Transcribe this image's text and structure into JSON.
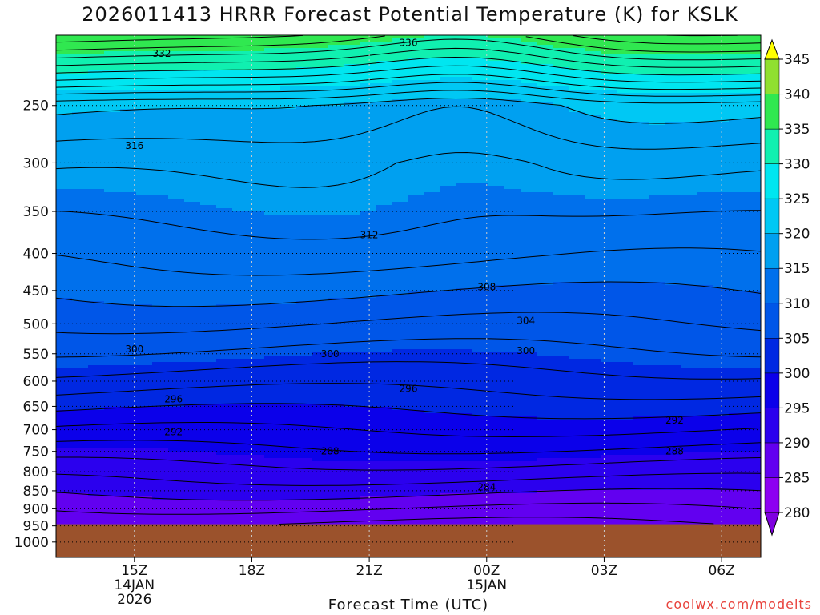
{
  "chart_data": {
    "type": "contour",
    "title": "2026011413 HRRR Forecast Potential Temperature (K) for KSLK",
    "xlabel": "Forecast Time (UTC)",
    "ylabel": "",
    "credit": "coolwx.com/modelts",
    "x_ticks": [
      {
        "hour": 15,
        "label": "15Z",
        "label2": "14JAN",
        "label3": "2026"
      },
      {
        "hour": 18,
        "label": "18Z",
        "label2": "",
        "label3": ""
      },
      {
        "hour": 21,
        "label": "21Z",
        "label2": "",
        "label3": ""
      },
      {
        "hour": 24,
        "label": "00Z",
        "label2": "15JAN",
        "label3": ""
      },
      {
        "hour": 27,
        "label": "03Z",
        "label2": "",
        "label3": ""
      },
      {
        "hour": 30,
        "label": "06Z",
        "label2": "",
        "label3": ""
      }
    ],
    "xlim": [
      13,
      31
    ],
    "y_scale": "log",
    "ylim": [
      1050,
      200
    ],
    "y_ticks": [
      250,
      300,
      350,
      400,
      450,
      500,
      550,
      600,
      650,
      700,
      750,
      800,
      850,
      900,
      950,
      1000
    ],
    "colorbar": {
      "levels": [
        280,
        285,
        290,
        295,
        300,
        305,
        310,
        315,
        320,
        325,
        330,
        335,
        340,
        345
      ],
      "colors": [
        "#7f00e0",
        "#8d00f2",
        "#6200f0",
        "#2b00ee",
        "#0b00ea",
        "#0028e2",
        "#0056e8",
        "#0070ec",
        "#00a0f0",
        "#00c8f4",
        "#00e6f0",
        "#10f0b0",
        "#30e850",
        "#90e030",
        "#ffff00"
      ]
    },
    "ground_color": "#9b522c",
    "ground_top_hPa": 945,
    "isotherm_labels": [
      {
        "value": "332",
        "hour": 15.7,
        "p": 212
      },
      {
        "value": "336",
        "hour": 22.0,
        "p": 205
      },
      {
        "value": "316",
        "hour": 15.0,
        "p": 284
      },
      {
        "value": "312",
        "hour": 21.0,
        "p": 377
      },
      {
        "value": "308",
        "hour": 24.0,
        "p": 445
      },
      {
        "value": "304",
        "hour": 25.0,
        "p": 495
      },
      {
        "value": "300",
        "hour": 15.0,
        "p": 542
      },
      {
        "value": "300",
        "hour": 20.0,
        "p": 550
      },
      {
        "value": "300",
        "hour": 25.0,
        "p": 545
      },
      {
        "value": "296",
        "hour": 16.0,
        "p": 635
      },
      {
        "value": "296",
        "hour": 22.0,
        "p": 615
      },
      {
        "value": "292",
        "hour": 16.0,
        "p": 705
      },
      {
        "value": "292",
        "hour": 28.8,
        "p": 680
      },
      {
        "value": "288",
        "hour": 20.0,
        "p": 750
      },
      {
        "value": "288",
        "hour": 28.8,
        "p": 750
      },
      {
        "value": "284",
        "hour": 24.0,
        "p": 840
      }
    ]
  }
}
